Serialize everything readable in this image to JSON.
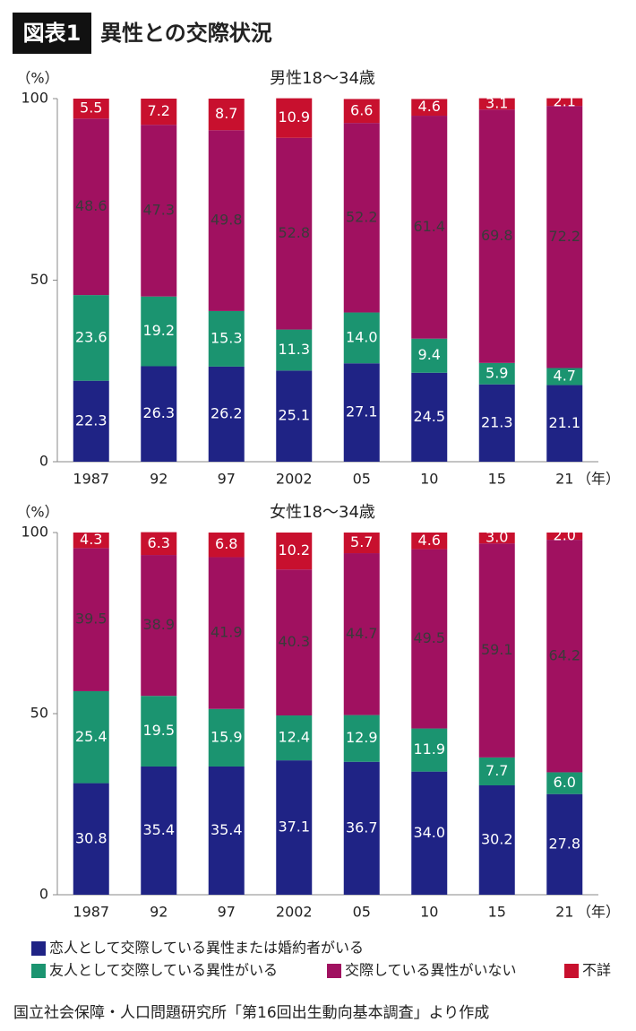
{
  "figure": {
    "label": "図表1",
    "title": "異性との交際状況",
    "source": "国立社会保障・人口問題研究所「第16回出生動向基本調査」より作成"
  },
  "chart_data": [
    {
      "type": "stacked_bar",
      "title": "男性18〜34歳",
      "ylabel": "（%）",
      "xlabel": "（年）",
      "categories": [
        "1987",
        "92",
        "97",
        "2002",
        "05",
        "10",
        "15",
        "21"
      ],
      "ylim": [
        0,
        100
      ],
      "yticks": [
        0,
        50,
        100
      ],
      "grid": false,
      "series": [
        {
          "name": "恋人として交際している異性または婚約者がいる",
          "color": "#1f2385",
          "label_color": "#ffffff",
          "values": [
            22.3,
            26.3,
            26.2,
            25.1,
            27.1,
            24.5,
            21.3,
            21.1
          ],
          "value_labels": [
            "22.3",
            "26.3",
            "26.2",
            "25.1",
            "27.1",
            "24.5",
            "21.3",
            "21.1"
          ]
        },
        {
          "name": "友人として交際している異性がいる",
          "color": "#1b9470",
          "label_color": "#ffffff",
          "values": [
            23.6,
            19.2,
            15.3,
            11.3,
            14.0,
            9.4,
            5.9,
            4.7
          ],
          "value_labels": [
            "23.6",
            "19.2",
            "15.3",
            "11.3",
            "14.0",
            "9.4",
            "5.9",
            "4.7"
          ]
        },
        {
          "name": "交際している異性がいない",
          "color": "#a01160",
          "label_color": "#3a3a3a",
          "values": [
            48.6,
            47.3,
            49.8,
            52.8,
            52.2,
            61.4,
            69.8,
            72.2
          ],
          "value_labels": [
            "48.6",
            "47.3",
            "49.8",
            "52.8",
            "52.2",
            "61.4",
            "69.8",
            "72.2"
          ]
        },
        {
          "name": "不詳",
          "color": "#c8102e",
          "label_color": "#ffffff",
          "values": [
            5.5,
            7.2,
            8.7,
            10.9,
            6.6,
            4.6,
            3.1,
            2.1
          ],
          "value_labels": [
            "5.5",
            "7.2",
            "8.7",
            "10.9",
            "6.6",
            "4.6",
            "3.1",
            "2.1"
          ]
        }
      ]
    },
    {
      "type": "stacked_bar",
      "title": "女性18〜34歳",
      "ylabel": "（%）",
      "xlabel": "（年）",
      "categories": [
        "1987",
        "92",
        "97",
        "2002",
        "05",
        "10",
        "15",
        "21"
      ],
      "ylim": [
        0,
        100
      ],
      "yticks": [
        0,
        50,
        100
      ],
      "grid": false,
      "series": [
        {
          "name": "恋人として交際している異性または婚約者がいる",
          "color": "#1f2385",
          "label_color": "#ffffff",
          "values": [
            30.8,
            35.4,
            35.4,
            37.1,
            36.7,
            34.0,
            30.2,
            27.8
          ],
          "value_labels": [
            "30.8",
            "35.4",
            "35.4",
            "37.1",
            "36.7",
            "34.0",
            "30.2",
            "27.8"
          ]
        },
        {
          "name": "友人として交際している異性がいる",
          "color": "#1b9470",
          "label_color": "#ffffff",
          "values": [
            25.4,
            19.5,
            15.9,
            12.4,
            12.9,
            11.9,
            7.7,
            6.0
          ],
          "value_labels": [
            "25.4",
            "19.5",
            "15.9",
            "12.4",
            "12.9",
            "11.9",
            "7.7",
            "6.0"
          ]
        },
        {
          "name": "交際している異性がいない",
          "color": "#a01160",
          "label_color": "#3a3a3a",
          "values": [
            39.5,
            38.9,
            41.9,
            40.3,
            44.7,
            49.5,
            59.1,
            64.2
          ],
          "value_labels": [
            "39.5",
            "38.9",
            "41.9",
            "40.3",
            "44.7",
            "49.5",
            "59.1",
            "64.2"
          ]
        },
        {
          "name": "不詳",
          "color": "#c8102e",
          "label_color": "#ffffff",
          "values": [
            4.3,
            6.3,
            6.8,
            10.2,
            5.7,
            4.6,
            3.0,
            2.0
          ],
          "value_labels": [
            "4.3",
            "6.3",
            "6.8",
            "10.2",
            "5.7",
            "4.6",
            "3.0",
            "2.0"
          ]
        }
      ]
    }
  ]
}
